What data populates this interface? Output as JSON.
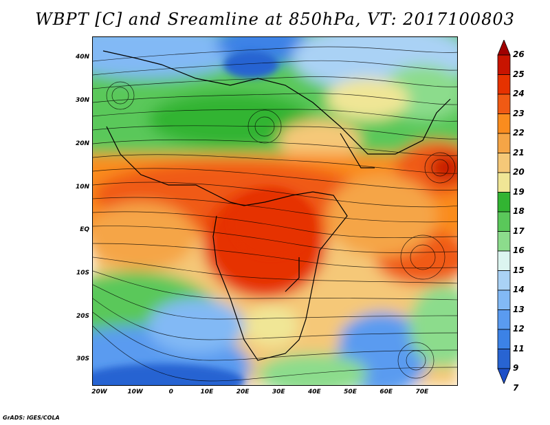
{
  "title": "WBPT [C] and Sreamline at 850hPa, VT: 2017100803",
  "credit": "GrADS: IGES/COLA",
  "map": {
    "lat_range": [
      -36,
      45
    ],
    "lon_range": [
      -22,
      80
    ],
    "lat_labels": [
      {
        "lat": 40,
        "text": "40N"
      },
      {
        "lat": 30,
        "text": "30N"
      },
      {
        "lat": 20,
        "text": "20N"
      },
      {
        "lat": 10,
        "text": "10N"
      },
      {
        "lat": 0,
        "text": "EQ"
      },
      {
        "lat": -10,
        "text": "10S"
      },
      {
        "lat": -20,
        "text": "20S"
      },
      {
        "lat": -30,
        "text": "30S"
      }
    ],
    "lon_labels": [
      {
        "lon": -20,
        "text": "20W"
      },
      {
        "lon": -10,
        "text": "10W"
      },
      {
        "lon": 0,
        "text": "0"
      },
      {
        "lon": 10,
        "text": "10E"
      },
      {
        "lon": 20,
        "text": "20E"
      },
      {
        "lon": 30,
        "text": "30E"
      },
      {
        "lon": 40,
        "text": "40E"
      },
      {
        "lon": 50,
        "text": "50E"
      },
      {
        "lon": 60,
        "text": "60E"
      },
      {
        "lon": 70,
        "text": "70E"
      }
    ]
  },
  "colorbar": {
    "levels": [
      "26",
      "25",
      "24",
      "23",
      "22",
      "21",
      "20",
      "19",
      "18",
      "17",
      "16",
      "15",
      "14",
      "13",
      "12",
      "11",
      "9",
      "7"
    ],
    "colors": [
      "#a00000",
      "#c81400",
      "#e63200",
      "#f05a14",
      "#fa8c1e",
      "#f5a546",
      "#f5c878",
      "#f0e696",
      "#32b432",
      "#5ac85a",
      "#8cdc8c",
      "#dcf5f0",
      "#aad2f5",
      "#82b9f5",
      "#5a9bf0",
      "#3c82e6",
      "#2864d2",
      "#1e50c8"
    ]
  }
}
